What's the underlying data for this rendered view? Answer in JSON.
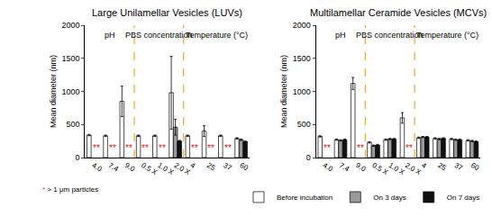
{
  "chart_data": [
    {
      "type": "bar",
      "title": "Large Unilamellar Vesicles (LUVs)",
      "ylabel": "Mean diameter (nm)",
      "categories": [
        "4.0",
        "7.4",
        "9.0",
        "0.5 X",
        "1.0 X",
        "2.0 X",
        "4",
        "25",
        "37",
        "60"
      ],
      "ylim": [
        0,
        2000
      ],
      "yticks": [
        0,
        500,
        1000,
        1500,
        2000
      ],
      "grid": false,
      "series": [
        {
          "name": "Before incubation",
          "color": "#ffffff",
          "values": [
            340,
            330,
            850,
            330,
            330,
            980,
            330,
            400,
            330,
            290
          ],
          "errors": [
            10,
            10,
            230,
            10,
            10,
            550,
            10,
            80,
            10,
            10
          ]
        },
        {
          "name": "On 3 days",
          "color": "#999999",
          "values": [
            null,
            null,
            null,
            null,
            null,
            460,
            null,
            null,
            null,
            270
          ],
          "errors": [
            null,
            null,
            null,
            null,
            null,
            120,
            null,
            null,
            null,
            10
          ]
        },
        {
          "name": "On 7 days",
          "color": "#111111",
          "values": [
            null,
            null,
            null,
            null,
            null,
            250,
            null,
            null,
            null,
            240
          ],
          "errors": [
            null,
            null,
            null,
            null,
            null,
            10,
            null,
            null,
            null,
            10
          ]
        }
      ],
      "sections": [
        {
          "label": "pH",
          "from": "4.0",
          "to": "9.0"
        },
        {
          "label": "PBS concentration",
          "from": "0.5 X",
          "to": "2.0 X"
        },
        {
          "label": "Temperature (°C)",
          "from": "4",
          "to": "60"
        }
      ],
      "annotations": [
        {
          "x": "4.0",
          "text": "**"
        },
        {
          "x": "7.4",
          "text": "**"
        },
        {
          "x": "9.0",
          "text": "**"
        },
        {
          "x": "0.5 X",
          "text": "**"
        },
        {
          "x": "1.0 X",
          "text": "**"
        },
        {
          "x": "4",
          "text": "**"
        },
        {
          "x": "25",
          "text": "**"
        },
        {
          "x": "37",
          "text": "**"
        }
      ],
      "footnote": "* > 1 μm particles"
    },
    {
      "type": "bar",
      "title": "Multilamellar Ceramide Vesicles (MCVs)",
      "ylabel": "Mean diameter (nm)",
      "categories": [
        "4.0",
        "7.4",
        "9.0",
        "0.5 X",
        "1.0 X",
        "2.0 X",
        "4",
        "25",
        "37",
        "60"
      ],
      "ylim": [
        0,
        2000
      ],
      "yticks": [
        0,
        500,
        1000,
        1500,
        2000
      ],
      "grid": false,
      "legend": "bottom",
      "series": [
        {
          "name": "Before incubation",
          "color": "#ffffff",
          "values": [
            320,
            270,
            1120,
            230,
            270,
            600,
            300,
            290,
            280,
            260
          ],
          "errors": [
            10,
            10,
            90,
            10,
            10,
            80,
            10,
            10,
            10,
            10
          ]
        },
        {
          "name": "On 3 days",
          "color": "#999999",
          "values": [
            null,
            260,
            null,
            180,
            280,
            null,
            310,
            280,
            270,
            250
          ],
          "errors": [
            null,
            10,
            null,
            10,
            10,
            null,
            10,
            10,
            10,
            10
          ]
        },
        {
          "name": "On 7 days",
          "color": "#111111",
          "values": [
            null,
            270,
            null,
            190,
            280,
            null,
            310,
            290,
            270,
            240
          ],
          "errors": [
            null,
            10,
            null,
            10,
            10,
            null,
            10,
            10,
            10,
            10
          ]
        }
      ],
      "sections": [
        {
          "label": "pH",
          "from": "4.0",
          "to": "9.0"
        },
        {
          "label": "PBS concentration",
          "from": "0.5 X",
          "to": "2.0 X"
        },
        {
          "label": "Temperature (°C)",
          "from": "4",
          "to": "60"
        }
      ],
      "annotations": [
        {
          "x": "4.0",
          "text": "**"
        },
        {
          "x": "9.0",
          "text": "**"
        },
        {
          "x": "2.0 X",
          "text": "**"
        }
      ]
    }
  ]
}
